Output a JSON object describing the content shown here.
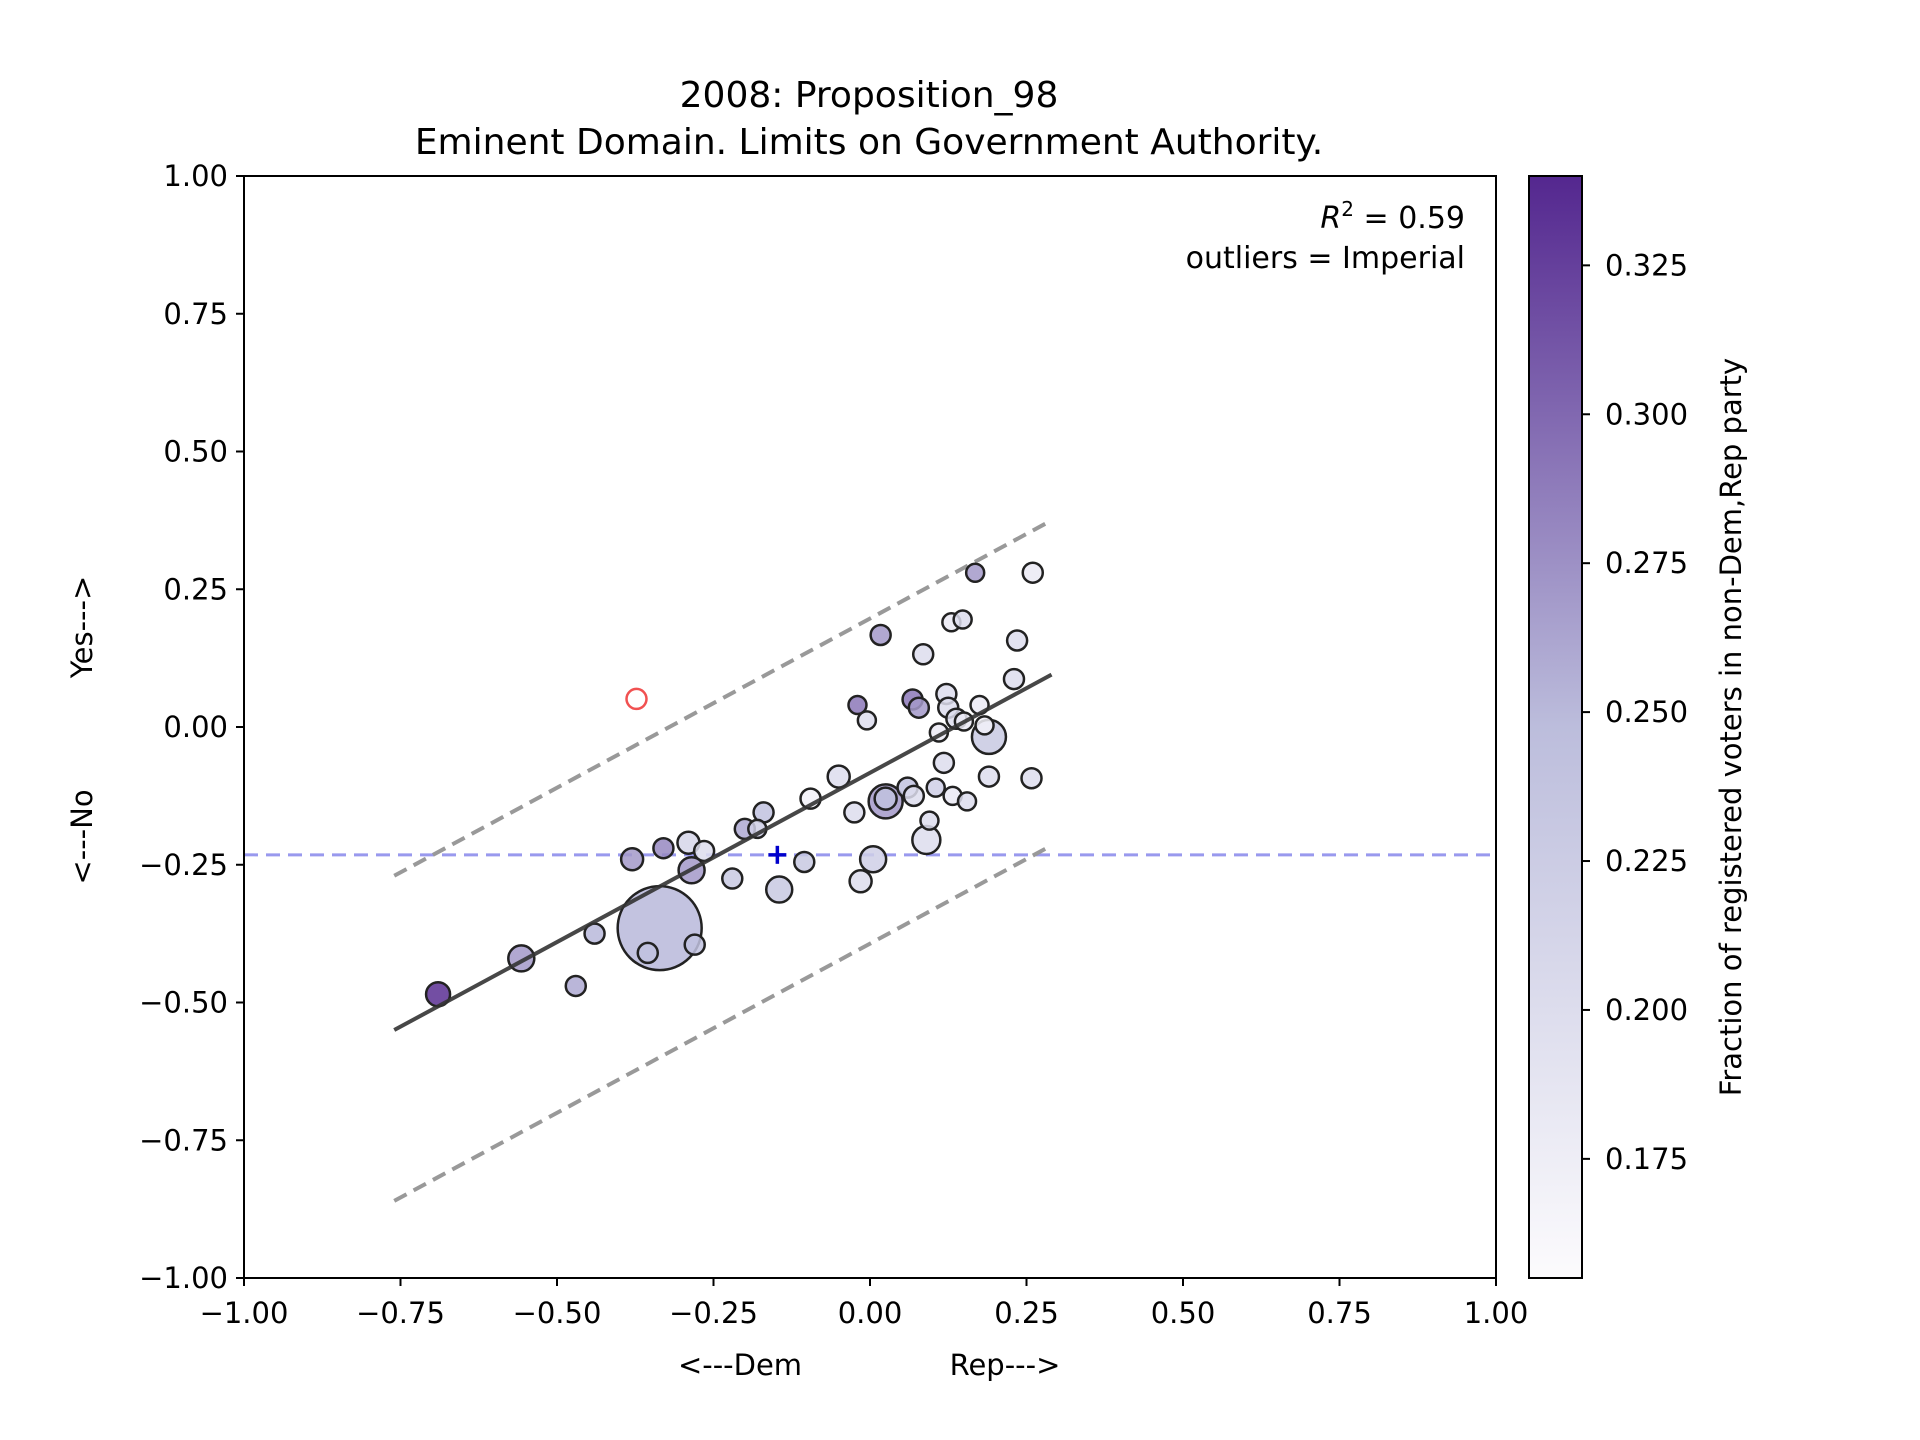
{
  "chart_data": {
    "type": "scatter",
    "title_line1": "2008: Proposition_98",
    "title_line2": "Eminent Domain. Limits on Government Authority.",
    "xlabel_left": "<---Dem",
    "xlabel_right": "Rep--->",
    "ylabel_no": "<---No",
    "ylabel_yes": "Yes--->",
    "xlim": [
      -1.0,
      1.0
    ],
    "ylim": [
      -1.0,
      1.0
    ],
    "x_ticks": [
      -1.0,
      -0.75,
      -0.5,
      -0.25,
      0.0,
      0.25,
      0.5,
      0.75,
      1.0
    ],
    "x_tick_labels": [
      "−1.00",
      "−0.75",
      "−0.50",
      "−0.25",
      "0.00",
      "0.25",
      "0.50",
      "0.75",
      "1.00"
    ],
    "y_ticks": [
      1.0,
      0.75,
      0.5,
      0.25,
      0.0,
      -0.25,
      -0.5,
      -0.75,
      -1.0
    ],
    "y_tick_labels": [
      "1.00",
      "0.75",
      "0.50",
      "0.25",
      "0.00",
      "−0.25",
      "−0.50",
      "−0.75",
      "−1.00"
    ],
    "annotation_r2_symbol": "R",
    "annotation_r2_exp": "2",
    "annotation_r2_value": " = 0.59",
    "annotation_outliers": "outliers = Imperial",
    "colorbar": {
      "label": "Fraction of registered voters in non-Dem,Rep party",
      "range": [
        0.155,
        0.34
      ],
      "ticks": [
        0.175,
        0.2,
        0.225,
        0.25,
        0.275,
        0.3,
        0.325
      ],
      "tick_labels": [
        "0.175",
        "0.200",
        "0.225",
        "0.250",
        "0.275",
        "0.300",
        "0.325"
      ],
      "color_low": "#fcfbfd",
      "color_mid": "#bcbddc",
      "color_high": "#54278f"
    },
    "fit_line": {
      "x": [
        -0.76,
        0.29
      ],
      "y": [
        -0.55,
        0.095
      ],
      "color": "#333333"
    },
    "upper_band": {
      "x": [
        -0.76,
        0.29
      ],
      "y": [
        -0.27,
        0.375
      ],
      "color": "#999999"
    },
    "lower_band": {
      "x": [
        -0.76,
        0.29
      ],
      "y": [
        -0.86,
        -0.215
      ],
      "color": "#999999"
    },
    "mean_line": {
      "y": -0.232,
      "color": "#9999ee"
    },
    "mean_marker": {
      "x": -0.148,
      "y": -0.232,
      "symbol": "+",
      "color": "#0000cc"
    },
    "outlier_point": {
      "name": "Imperial",
      "x": -0.373,
      "y": 0.051,
      "color": "#ee3333"
    },
    "points": [
      {
        "x": -0.69,
        "y": -0.485,
        "c": 0.335,
        "s": 12
      },
      {
        "x": -0.557,
        "y": -0.42,
        "c": 0.27,
        "s": 13
      },
      {
        "x": -0.47,
        "y": -0.47,
        "c": 0.26,
        "s": 10
      },
      {
        "x": -0.44,
        "y": -0.375,
        "c": 0.25,
        "s": 10
      },
      {
        "x": -0.38,
        "y": -0.24,
        "c": 0.27,
        "s": 11
      },
      {
        "x": -0.355,
        "y": -0.41,
        "c": 0.24,
        "s": 10
      },
      {
        "x": -0.336,
        "y": -0.365,
        "c": 0.25,
        "s": 42
      },
      {
        "x": -0.33,
        "y": -0.22,
        "c": 0.28,
        "s": 10
      },
      {
        "x": -0.29,
        "y": -0.21,
        "c": 0.21,
        "s": 11
      },
      {
        "x": -0.285,
        "y": -0.26,
        "c": 0.27,
        "s": 13
      },
      {
        "x": -0.28,
        "y": -0.395,
        "c": 0.24,
        "s": 10
      },
      {
        "x": -0.265,
        "y": -0.225,
        "c": 0.2,
        "s": 10
      },
      {
        "x": -0.22,
        "y": -0.275,
        "c": 0.23,
        "s": 10
      },
      {
        "x": -0.2,
        "y": -0.185,
        "c": 0.26,
        "s": 10
      },
      {
        "x": -0.18,
        "y": -0.185,
        "c": 0.22,
        "s": 9
      },
      {
        "x": -0.17,
        "y": -0.155,
        "c": 0.24,
        "s": 10
      },
      {
        "x": -0.145,
        "y": -0.295,
        "c": 0.23,
        "s": 13
      },
      {
        "x": -0.105,
        "y": -0.245,
        "c": 0.23,
        "s": 10
      },
      {
        "x": -0.095,
        "y": -0.13,
        "c": 0.17,
        "s": 10
      },
      {
        "x": -0.05,
        "y": -0.09,
        "c": 0.2,
        "s": 11
      },
      {
        "x": -0.025,
        "y": -0.155,
        "c": 0.2,
        "s": 10
      },
      {
        "x": -0.02,
        "y": 0.04,
        "c": 0.29,
        "s": 9
      },
      {
        "x": -0.015,
        "y": -0.28,
        "c": 0.2,
        "s": 11
      },
      {
        "x": -0.005,
        "y": 0.012,
        "c": 0.2,
        "s": 9
      },
      {
        "x": 0.005,
        "y": -0.24,
        "c": 0.22,
        "s": 13
      },
      {
        "x": 0.017,
        "y": 0.167,
        "c": 0.27,
        "s": 10
      },
      {
        "x": 0.025,
        "y": -0.135,
        "c": 0.27,
        "s": 17
      },
      {
        "x": 0.025,
        "y": -0.13,
        "c": 0.24,
        "s": 11
      },
      {
        "x": 0.06,
        "y": -0.11,
        "c": 0.24,
        "s": 10
      },
      {
        "x": 0.068,
        "y": 0.05,
        "c": 0.29,
        "s": 10
      },
      {
        "x": 0.07,
        "y": -0.125,
        "c": 0.2,
        "s": 10
      },
      {
        "x": 0.078,
        "y": 0.035,
        "c": 0.27,
        "s": 10
      },
      {
        "x": 0.085,
        "y": 0.132,
        "c": 0.2,
        "s": 10
      },
      {
        "x": 0.09,
        "y": -0.205,
        "c": 0.2,
        "s": 14
      },
      {
        "x": 0.095,
        "y": -0.17,
        "c": 0.2,
        "s": 9
      },
      {
        "x": 0.105,
        "y": -0.11,
        "c": 0.22,
        "s": 9
      },
      {
        "x": 0.11,
        "y": -0.01,
        "c": 0.18,
        "s": 9
      },
      {
        "x": 0.118,
        "y": -0.065,
        "c": 0.2,
        "s": 10
      },
      {
        "x": 0.122,
        "y": 0.06,
        "c": 0.2,
        "s": 10
      },
      {
        "x": 0.125,
        "y": 0.035,
        "c": 0.2,
        "s": 10
      },
      {
        "x": 0.13,
        "y": 0.19,
        "c": 0.18,
        "s": 9
      },
      {
        "x": 0.132,
        "y": -0.125,
        "c": 0.18,
        "s": 9
      },
      {
        "x": 0.138,
        "y": 0.015,
        "c": 0.2,
        "s": 10
      },
      {
        "x": 0.148,
        "y": 0.195,
        "c": 0.2,
        "s": 9
      },
      {
        "x": 0.15,
        "y": 0.01,
        "c": 0.18,
        "s": 9
      },
      {
        "x": 0.155,
        "y": -0.135,
        "c": 0.2,
        "s": 9
      },
      {
        "x": 0.168,
        "y": 0.28,
        "c": 0.27,
        "s": 9
      },
      {
        "x": 0.175,
        "y": 0.04,
        "c": 0.18,
        "s": 9
      },
      {
        "x": 0.183,
        "y": 0.003,
        "c": 0.17,
        "s": 9
      },
      {
        "x": 0.19,
        "y": -0.09,
        "c": 0.2,
        "s": 10
      },
      {
        "x": 0.19,
        "y": -0.018,
        "c": 0.23,
        "s": 17
      },
      {
        "x": 0.23,
        "y": 0.087,
        "c": 0.2,
        "s": 10
      },
      {
        "x": 0.235,
        "y": 0.157,
        "c": 0.2,
        "s": 10
      },
      {
        "x": 0.258,
        "y": -0.093,
        "c": 0.2,
        "s": 10
      },
      {
        "x": 0.26,
        "y": 0.28,
        "c": 0.18,
        "s": 10
      }
    ]
  }
}
